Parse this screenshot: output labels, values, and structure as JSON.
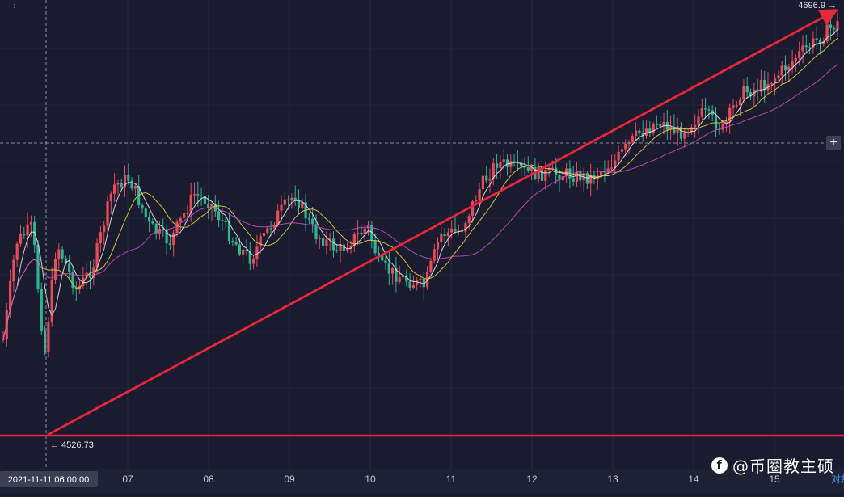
{
  "chart_data": {
    "type": "candlestick",
    "x_ticks": [
      "07",
      "08",
      "09",
      "10",
      "11",
      "12",
      "13",
      "14",
      "15"
    ],
    "crosshair_time_label": "2021-11-11 06:00:00",
    "price_tags": {
      "high": {
        "value": "4696.9",
        "arrow": "→"
      },
      "low": {
        "value": "4526.73",
        "arrow": "←"
      }
    },
    "bottom_right_label": "对数",
    "trendline": {
      "from": {
        "x": "2021-11-06",
        "y": 4526.73
      },
      "to": {
        "x": "2021-11-15",
        "y": 4696.9
      }
    },
    "support_line": {
      "y": 4526.73
    },
    "moving_averages": [
      {
        "color": "#e8e8e8"
      },
      {
        "color": "#e5d14a"
      },
      {
        "color": "#c351c1"
      }
    ],
    "colors": {
      "up": "#e74c5b",
      "down": "#2fb592",
      "trend": "#e8283c",
      "background": "#1a1b2e"
    }
  },
  "watermark": {
    "logo": "f",
    "text": "@币圈教主硕"
  },
  "controls": {
    "plus": "+",
    "collapse": "›"
  }
}
